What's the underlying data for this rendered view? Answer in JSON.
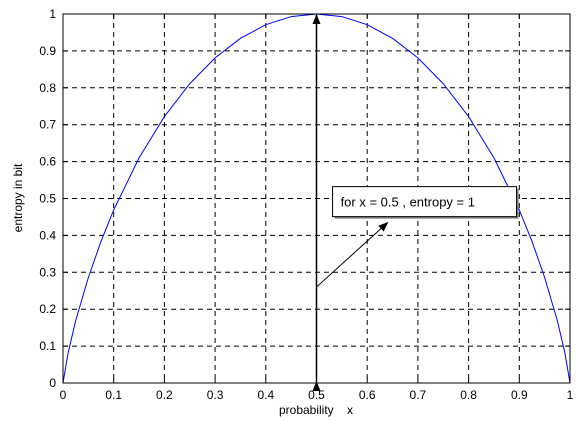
{
  "chart_data": {
    "type": "line",
    "title": "",
    "xlabel": "probability    x",
    "ylabel": "entropy in bit",
    "xlim": [
      0,
      1
    ],
    "ylim": [
      0,
      1
    ],
    "grid": true,
    "grid_style": "dashed",
    "x_ticks": [
      0,
      0.1,
      0.2,
      0.3,
      0.4,
      0.5,
      0.6,
      0.7,
      0.8,
      0.9,
      1
    ],
    "y_ticks": [
      0,
      0.1,
      0.2,
      0.3,
      0.4,
      0.5,
      0.6,
      0.7,
      0.8,
      0.9,
      1
    ],
    "x_tick_labels": [
      "0",
      "0.1",
      "0.2",
      "0.3",
      "0.4",
      "0.5",
      "0.6",
      "0.7",
      "0.8",
      "0.9",
      "1"
    ],
    "y_tick_labels": [
      "0",
      "0.1",
      "0.2",
      "0.3",
      "0.4",
      "0.5",
      "0.6",
      "0.7",
      "0.8",
      "0.9",
      "1"
    ],
    "series": [
      {
        "color": "#0000ff",
        "x": [
          0,
          0.01,
          0.025,
          0.05,
          0.075,
          0.1,
          0.15,
          0.2,
          0.25,
          0.3,
          0.35,
          0.4,
          0.45,
          0.5,
          0.55,
          0.6,
          0.65,
          0.7,
          0.75,
          0.8,
          0.85,
          0.9,
          0.925,
          0.95,
          0.975,
          0.99,
          1
        ],
        "y": [
          0,
          0.081,
          0.169,
          0.286,
          0.384,
          0.469,
          0.61,
          0.722,
          0.811,
          0.881,
          0.934,
          0.971,
          0.993,
          1,
          0.993,
          0.971,
          0.934,
          0.881,
          0.811,
          0.722,
          0.61,
          0.469,
          0.384,
          0.286,
          0.169,
          0.081,
          0
        ]
      }
    ],
    "annotations": [
      {
        "type": "double-arrow",
        "x": [
          0.5,
          0.5
        ],
        "y": [
          0,
          1
        ],
        "color": "#000000"
      },
      {
        "type": "textbox",
        "text": "for x = 0.5 , entropy = 1",
        "anchor_x": 0.51,
        "anchor_y": 0.44,
        "arrow_to": [
          0.5,
          0.26
        ]
      }
    ]
  }
}
